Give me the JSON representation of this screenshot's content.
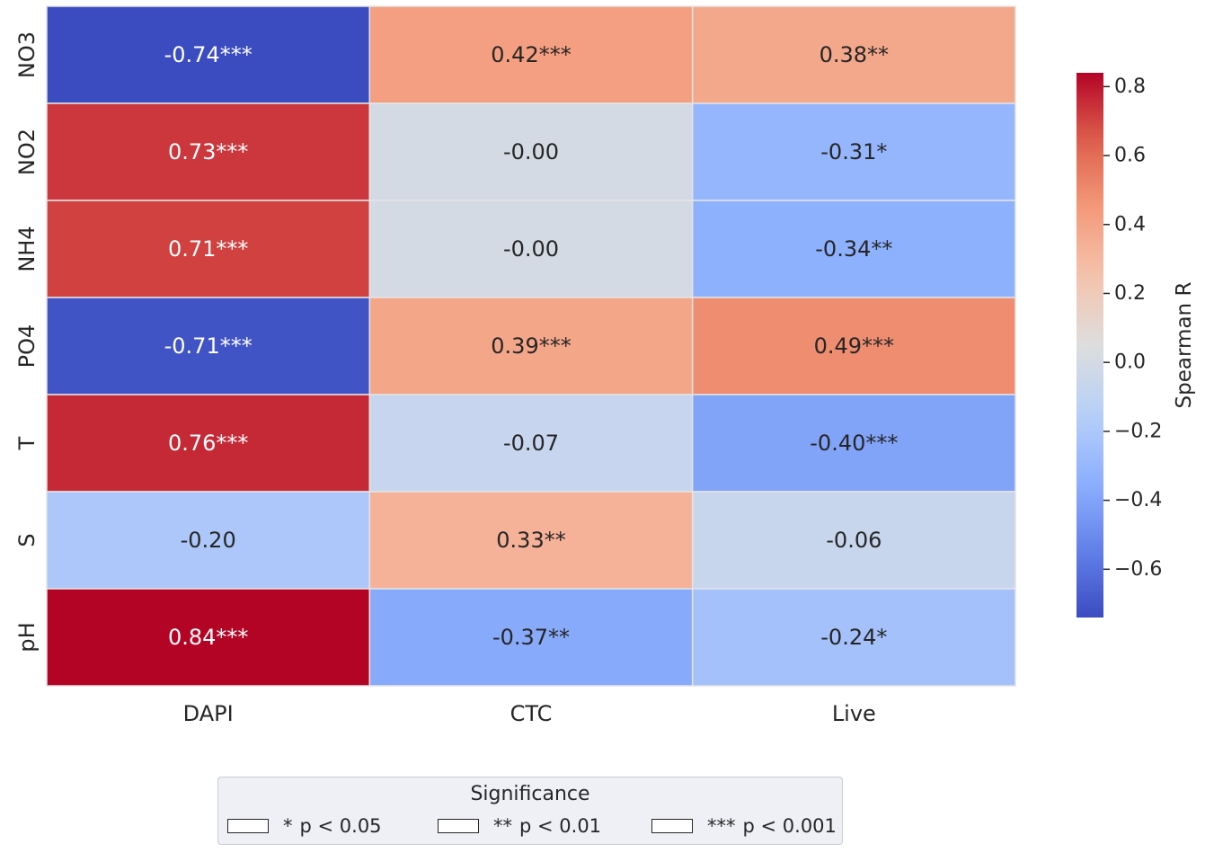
{
  "chart_data": {
    "type": "heatmap",
    "rows": [
      "NO3",
      "NO2",
      "NH4",
      "PO4",
      "T",
      "S",
      "pH"
    ],
    "columns": [
      "DAPI",
      "CTC",
      "Live"
    ],
    "values": [
      [
        -0.74,
        0.42,
        0.38
      ],
      [
        0.73,
        -0.0,
        -0.31
      ],
      [
        0.71,
        -0.0,
        -0.34
      ],
      [
        -0.71,
        0.39,
        0.49
      ],
      [
        0.76,
        -0.07,
        -0.4
      ],
      [
        -0.2,
        0.33,
        -0.06
      ],
      [
        0.84,
        -0.37,
        -0.24
      ]
    ],
    "annotations": [
      [
        "-0.74***",
        "0.42***",
        "0.38**"
      ],
      [
        "0.73***",
        "-0.00",
        "-0.31*"
      ],
      [
        "0.71***",
        "-0.00",
        "-0.34**"
      ],
      [
        "-0.71***",
        "0.39***",
        "0.49***"
      ],
      [
        "0.76***",
        "-0.07",
        "-0.40***"
      ],
      [
        "-0.20",
        "0.33**",
        "-0.06"
      ],
      [
        "0.84***",
        "-0.37**",
        "-0.24*"
      ]
    ],
    "colormap": "coolwarm",
    "vmin": -0.74,
    "vmax": 0.84,
    "colorbar": {
      "label": "Spearman R",
      "ticks": [
        0.8,
        0.6,
        0.4,
        0.2,
        0.0,
        -0.2,
        -0.4,
        -0.6
      ],
      "tick_labels": [
        "0.8",
        "0.6",
        "0.4",
        "0.2",
        "0.0",
        "−0.2",
        "−0.4",
        "−0.6"
      ]
    },
    "legend": {
      "title": "Significance",
      "placement": "bottom-center",
      "items": [
        {
          "stars": "*",
          "label": "p < 0.05"
        },
        {
          "stars": "**",
          "label": "p < 0.01"
        },
        {
          "stars": "***",
          "label": "p < 0.001"
        }
      ]
    }
  }
}
